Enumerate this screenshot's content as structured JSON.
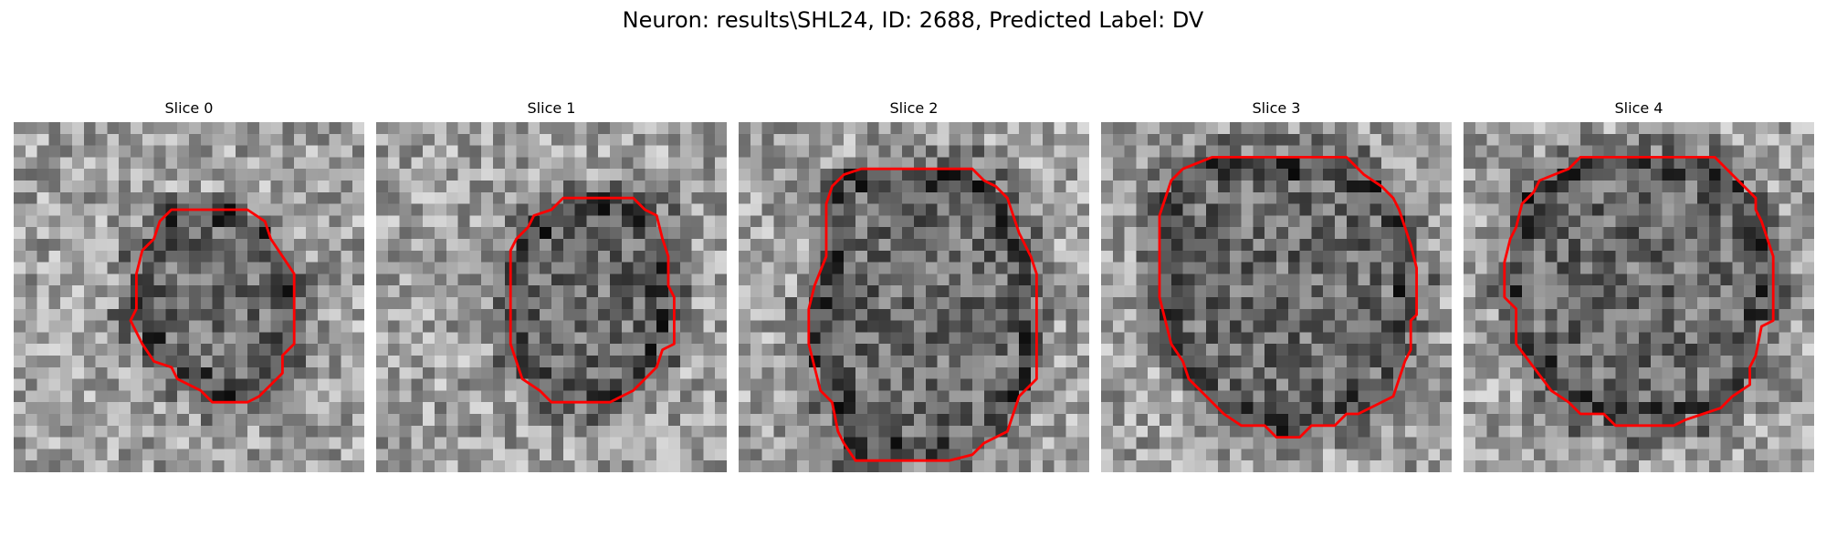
{
  "title": "Neuron: results\\SHL24, ID: 2688, Predicted Label: DV",
  "contour_color": "#ff0000",
  "panels": [
    {
      "title": "Slice 0",
      "seed": 11,
      "grid": 30,
      "contour": [
        [
          13.5,
          7.5
        ],
        [
          20,
          7.5
        ],
        [
          21.5,
          8.5
        ],
        [
          22,
          10
        ],
        [
          23,
          11.5
        ],
        [
          24,
          13
        ],
        [
          24,
          19
        ],
        [
          23,
          20
        ],
        [
          23,
          21.5
        ],
        [
          22,
          22.5
        ],
        [
          21,
          23.5
        ],
        [
          20,
          24
        ],
        [
          17,
          24
        ],
        [
          16,
          23
        ],
        [
          14,
          22
        ],
        [
          13.5,
          21
        ],
        [
          12,
          20.5
        ],
        [
          11,
          19
        ],
        [
          10.5,
          18
        ],
        [
          10,
          17
        ],
        [
          10.5,
          16
        ],
        [
          10.5,
          13
        ],
        [
          11,
          11
        ],
        [
          12,
          10
        ],
        [
          12.5,
          8.5
        ]
      ]
    },
    {
      "title": "Slice 1",
      "seed": 23,
      "grid": 30,
      "contour": [
        [
          13.5,
          8
        ],
        [
          15,
          7.5
        ],
        [
          16,
          6.5
        ],
        [
          22,
          6.5
        ],
        [
          23,
          7.5
        ],
        [
          24,
          8
        ],
        [
          24.5,
          10
        ],
        [
          25,
          11.5
        ],
        [
          25,
          14
        ],
        [
          25.5,
          15
        ],
        [
          25.5,
          19
        ],
        [
          24.5,
          19.5
        ],
        [
          24,
          21
        ],
        [
          23,
          22
        ],
        [
          22,
          23
        ],
        [
          21,
          23.5
        ],
        [
          20,
          24
        ],
        [
          15,
          24
        ],
        [
          14,
          23
        ],
        [
          12.5,
          22
        ],
        [
          12,
          20.5
        ],
        [
          11.5,
          19
        ],
        [
          11.5,
          11
        ],
        [
          12,
          10
        ],
        [
          13,
          9
        ]
      ]
    },
    {
      "title": "Slice 2",
      "seed": 37,
      "grid": 30,
      "contour": [
        [
          9,
          4.5
        ],
        [
          10.5,
          4
        ],
        [
          20,
          4
        ],
        [
          21,
          5
        ],
        [
          22,
          5.5
        ],
        [
          23,
          6.5
        ],
        [
          23.5,
          8
        ],
        [
          24,
          9.5
        ],
        [
          25,
          11.5
        ],
        [
          25.5,
          13
        ],
        [
          25.5,
          22
        ],
        [
          24.5,
          23
        ],
        [
          24,
          23.5
        ],
        [
          23.5,
          25
        ],
        [
          23,
          26.5
        ],
        [
          21,
          27.5
        ],
        [
          20,
          28.5
        ],
        [
          18,
          29
        ],
        [
          10,
          29
        ],
        [
          9,
          27.5
        ],
        [
          8.5,
          26.5
        ],
        [
          8,
          24
        ],
        [
          7,
          23
        ],
        [
          6.5,
          21
        ],
        [
          6,
          19
        ],
        [
          6,
          16
        ],
        [
          6.5,
          14
        ],
        [
          7.5,
          11.5
        ],
        [
          7.5,
          7
        ],
        [
          8,
          5.5
        ]
      ]
    },
    {
      "title": "Slice 3",
      "seed": 53,
      "grid": 30,
      "contour": [
        [
          7,
          4
        ],
        [
          9.5,
          3
        ],
        [
          21,
          3
        ],
        [
          22.5,
          4.5
        ],
        [
          24,
          5.5
        ],
        [
          25,
          6.5
        ],
        [
          25.5,
          7.5
        ],
        [
          26.5,
          10.5
        ],
        [
          27,
          12.5
        ],
        [
          27,
          16.5
        ],
        [
          26.5,
          17
        ],
        [
          26.5,
          19.5
        ],
        [
          26,
          20.5
        ],
        [
          25.5,
          22
        ],
        [
          25,
          23.5
        ],
        [
          23,
          24.5
        ],
        [
          22,
          25
        ],
        [
          21,
          25
        ],
        [
          20,
          26
        ],
        [
          18,
          26
        ],
        [
          17,
          27
        ],
        [
          15,
          27
        ],
        [
          14,
          26
        ],
        [
          12,
          26
        ],
        [
          10.5,
          25
        ],
        [
          9,
          23.5
        ],
        [
          7.5,
          22
        ],
        [
          7,
          20.5
        ],
        [
          6,
          19
        ],
        [
          5.5,
          17
        ],
        [
          5,
          15
        ],
        [
          5,
          8
        ],
        [
          6,
          5
        ]
      ]
    },
    {
      "title": "Slice 4",
      "seed": 71,
      "grid": 30,
      "contour": [
        [
          6.5,
          5
        ],
        [
          9,
          4
        ],
        [
          10,
          3
        ],
        [
          21.5,
          3
        ],
        [
          22.5,
          4
        ],
        [
          24,
          5.5
        ],
        [
          25,
          6.5
        ],
        [
          25,
          7.5
        ],
        [
          25.5,
          8.5
        ],
        [
          26,
          10
        ],
        [
          26.5,
          11.5
        ],
        [
          26.5,
          17
        ],
        [
          25.5,
          17.5
        ],
        [
          25,
          20
        ],
        [
          24.5,
          21
        ],
        [
          24.5,
          22.5
        ],
        [
          23,
          23.5
        ],
        [
          22,
          24.5
        ],
        [
          20.5,
          25
        ],
        [
          19,
          25.5
        ],
        [
          18,
          26
        ],
        [
          13,
          26
        ],
        [
          12,
          25
        ],
        [
          10,
          25
        ],
        [
          9,
          24
        ],
        [
          7.5,
          23
        ],
        [
          6,
          21
        ],
        [
          4.5,
          19
        ],
        [
          4.5,
          16
        ],
        [
          3.5,
          15
        ],
        [
          3.5,
          12
        ],
        [
          4,
          10
        ],
        [
          4.5,
          9
        ],
        [
          5,
          7
        ],
        [
          6,
          6
        ]
      ]
    }
  ]
}
